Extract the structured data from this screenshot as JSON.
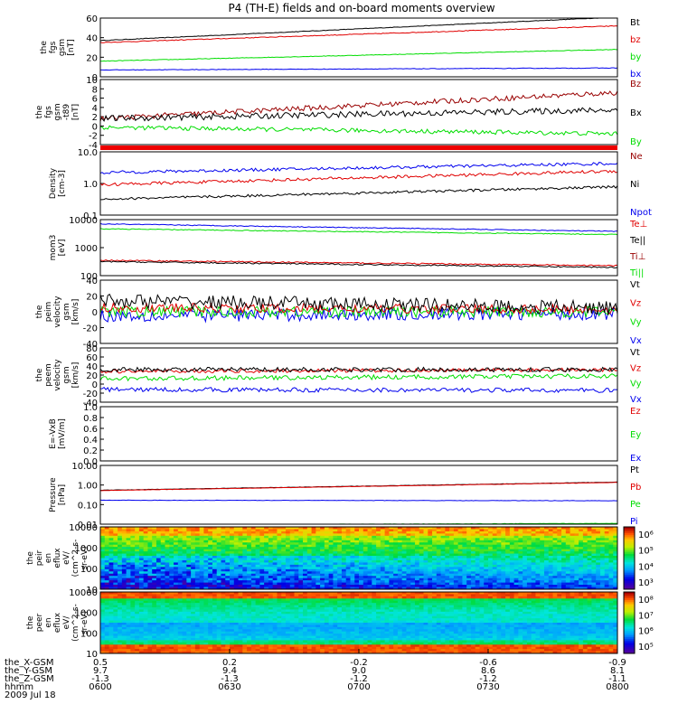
{
  "title": "P4 (TH-E) fields and on-board moments overview",
  "colors": {
    "black": "#000000",
    "red": "#e00000",
    "green": "#00dd00",
    "blue": "#0000ee",
    "darkred": "#990000"
  },
  "chart_data": [
    {
      "type": "line",
      "ylabel": [
        "the",
        "fgs",
        "gsm",
        "[nT]"
      ],
      "ylim": [
        0,
        60
      ],
      "yticks": [
        "60",
        "40",
        "20",
        "0"
      ],
      "legend": [
        {
          "label": "Bt",
          "color": "#000000"
        },
        {
          "label": "bz",
          "color": "#e00000"
        },
        {
          "label": "by",
          "color": "#00dd00"
        },
        {
          "label": "bx",
          "color": "#0000ee"
        }
      ],
      "series": [
        {
          "color": "#000000",
          "start": 37,
          "end": 61,
          "noise": 0.3
        },
        {
          "color": "#e00000",
          "start": 35,
          "end": 52,
          "noise": 0.4
        },
        {
          "color": "#00dd00",
          "start": 16,
          "end": 28,
          "noise": 0.3
        },
        {
          "color": "#0000ee",
          "start": 7,
          "end": 9,
          "noise": 0.3
        }
      ]
    },
    {
      "type": "line",
      "ylabel": [
        "the",
        "fgs",
        "gsm",
        "-t89",
        "[nT]"
      ],
      "ylim": [
        -5,
        10
      ],
      "yticks": [
        "10",
        "8",
        "6",
        "4",
        "2",
        "0",
        "-2",
        "-4"
      ],
      "legend": [
        {
          "label": "Bz",
          "color": "#990000"
        },
        {
          "label": "Bx",
          "color": "#000000"
        },
        {
          "label": "By",
          "color": "#00dd00"
        }
      ],
      "series": [
        {
          "color": "#990000",
          "start": 1,
          "end": 7,
          "noise": 0.6
        },
        {
          "color": "#000000",
          "start": 1,
          "end": 3,
          "noise": 0.7
        },
        {
          "color": "#00dd00",
          "start": -1,
          "end": -2.5,
          "noise": 0.5
        }
      ]
    },
    {
      "type": "line",
      "scale": "log",
      "ylabel": [
        "Density",
        "[cm-3]"
      ],
      "ylim": [
        0.1,
        12
      ],
      "yticks": [
        "10.0",
        "1.0",
        "0.1"
      ],
      "legend": [
        {
          "label": "Ne",
          "color": "#990000"
        },
        {
          "label": "Ni",
          "color": "#000000"
        },
        {
          "label": "Npot",
          "color": "#0000ee"
        }
      ],
      "series": [
        {
          "color": "#0000ee",
          "start": 2.5,
          "end": 5,
          "noise": 0.05
        },
        {
          "color": "#e00000",
          "start": 1.0,
          "end": 2.8,
          "noise": 0.05
        },
        {
          "color": "#000000",
          "start": 0.33,
          "end": 0.85,
          "noise": 0.04
        }
      ]
    },
    {
      "type": "line",
      "scale": "log",
      "ylabel": [
        "mom3",
        "[eV]"
      ],
      "ylim": [
        20,
        10000
      ],
      "yticks": [
        "10000",
        "1000",
        "100"
      ],
      "legend": [
        {
          "label": "Te⊥",
          "color": "#e00000"
        },
        {
          "label": "Te||",
          "color": "#000000"
        },
        {
          "label": "Ti⊥",
          "color": "#990000"
        },
        {
          "label": "Ti||",
          "color": "#00dd00"
        }
      ],
      "series": [
        {
          "color": "#0000ee",
          "start": 6200,
          "end": 2700,
          "noise": 0.02
        },
        {
          "color": "#00dd00",
          "start": 3600,
          "end": 1900,
          "noise": 0.02
        },
        {
          "color": "#e00000",
          "start": 110,
          "end": 60,
          "noise": 0.03
        },
        {
          "color": "#000000",
          "start": 95,
          "end": 50,
          "noise": 0.03
        }
      ]
    },
    {
      "type": "line",
      "ylabel": [
        "the",
        "peim",
        "velocity",
        "gsm",
        "[km/s]"
      ],
      "ylim": [
        -40,
        40
      ],
      "yticks": [
        "40",
        "20",
        "0",
        "-20",
        "-40"
      ],
      "legend": [
        {
          "label": "Vt",
          "color": "#000000"
        },
        {
          "label": "Vz",
          "color": "#e00000"
        },
        {
          "label": "Vy",
          "color": "#00dd00"
        },
        {
          "label": "Vx",
          "color": "#0000ee"
        }
      ],
      "series": [
        {
          "color": "#0000ee",
          "start": -5,
          "end": -2,
          "noise": 8
        },
        {
          "color": "#00dd00",
          "start": 0,
          "end": 0,
          "noise": 7
        },
        {
          "color": "#e00000",
          "start": 5,
          "end": 3,
          "noise": 6
        },
        {
          "color": "#000000",
          "start": 14,
          "end": 5,
          "noise": 9
        }
      ]
    },
    {
      "type": "line",
      "ylabel": [
        "the",
        "peem",
        "velocity",
        "gsm",
        "[km/s]"
      ],
      "ylim": [
        -40,
        80
      ],
      "yticks": [
        "80",
        "60",
        "40",
        "20",
        "0",
        "-20",
        "-40"
      ],
      "legend": [
        {
          "label": "Vt",
          "color": "#000000"
        },
        {
          "label": "Vz",
          "color": "#e00000"
        },
        {
          "label": "Vy",
          "color": "#00dd00"
        },
        {
          "label": "Vx",
          "color": "#0000ee"
        }
      ],
      "series": [
        {
          "color": "#0000ee",
          "start": -12,
          "end": -14,
          "noise": 5
        },
        {
          "color": "#00dd00",
          "start": 12,
          "end": 18,
          "noise": 5
        },
        {
          "color": "#e00000",
          "start": 28,
          "end": 32,
          "noise": 4
        },
        {
          "color": "#000000",
          "start": 32,
          "end": 32,
          "noise": 5
        }
      ]
    },
    {
      "type": "line",
      "ylabel": [
        "E=-VxB",
        "[mV/m]"
      ],
      "ylim": [
        0,
        1
      ],
      "yticks": [
        "1.0",
        "0.8",
        "0.6",
        "0.4",
        "0.2",
        "0.0"
      ],
      "legend": [
        {
          "label": "Ez",
          "color": "#e00000"
        },
        {
          "label": "Ey",
          "color": "#00dd00"
        },
        {
          "label": "Ex",
          "color": "#0000ee"
        }
      ],
      "series": []
    },
    {
      "type": "line",
      "scale": "log",
      "ylabel": [
        "Pressure",
        "[nPa]"
      ],
      "ylim": [
        0.01,
        12
      ],
      "yticks": [
        "10.00",
        "1.00",
        "0.10",
        "0.01"
      ],
      "legend": [
        {
          "label": "Pt",
          "color": "#000000"
        },
        {
          "label": "Pb",
          "color": "#e00000"
        },
        {
          "label": "Pe",
          "color": "#00dd00"
        },
        {
          "label": "Pi",
          "color": "#0000ee"
        }
      ],
      "series": [
        {
          "color": "#000000",
          "start": 0.6,
          "end": 1.6,
          "noise": 0.01
        },
        {
          "color": "#e00000",
          "start": 0.58,
          "end": 1.55,
          "noise": 0.01
        },
        {
          "color": "#0000ee",
          "start": 0.18,
          "end": 0.17,
          "noise": 0.01
        },
        {
          "color": "#00dd00",
          "start": 0.009,
          "end": 0.011,
          "noise": 0.01
        }
      ]
    },
    {
      "type": "heatmap",
      "ylabel": [
        "the",
        "peir",
        "en",
        "eflux",
        "eV/",
        "(cm^2-s-",
        "sr-eV)"
      ],
      "yticks": [
        "10000",
        "1000",
        "100",
        "10"
      ],
      "colorbar_ticks": [
        "10⁶",
        "10⁵",
        "10⁴",
        "10³"
      ],
      "profile": "ion"
    },
    {
      "type": "heatmap",
      "ylabel": [
        "the",
        "peer",
        "en",
        "eflux",
        "eV/",
        "(cm^2-s-",
        "sr-eV)"
      ],
      "yticks": [
        "10000",
        "1000",
        "100",
        "10"
      ],
      "colorbar_ticks": [
        "10⁸",
        "10⁷",
        "10⁶",
        "10⁵"
      ],
      "profile": "electron"
    }
  ],
  "x_axis": {
    "rows": [
      {
        "label": "the_X-GSM",
        "values": [
          "0.5",
          "0.2",
          "-0.2",
          "-0.6",
          "-0.9"
        ]
      },
      {
        "label": "the_Y-GSM",
        "values": [
          "9.7",
          "9.4",
          "9.0",
          "8.6",
          "8.1"
        ]
      },
      {
        "label": "the_Z-GSM",
        "values": [
          "-1.3",
          "-1.3",
          "-1.2",
          "-1.2",
          "-1.1"
        ]
      },
      {
        "label": "hhmm",
        "values": [
          "0600",
          "0630",
          "0700",
          "0730",
          "0800"
        ]
      }
    ],
    "date": "2009 Jul 18"
  }
}
